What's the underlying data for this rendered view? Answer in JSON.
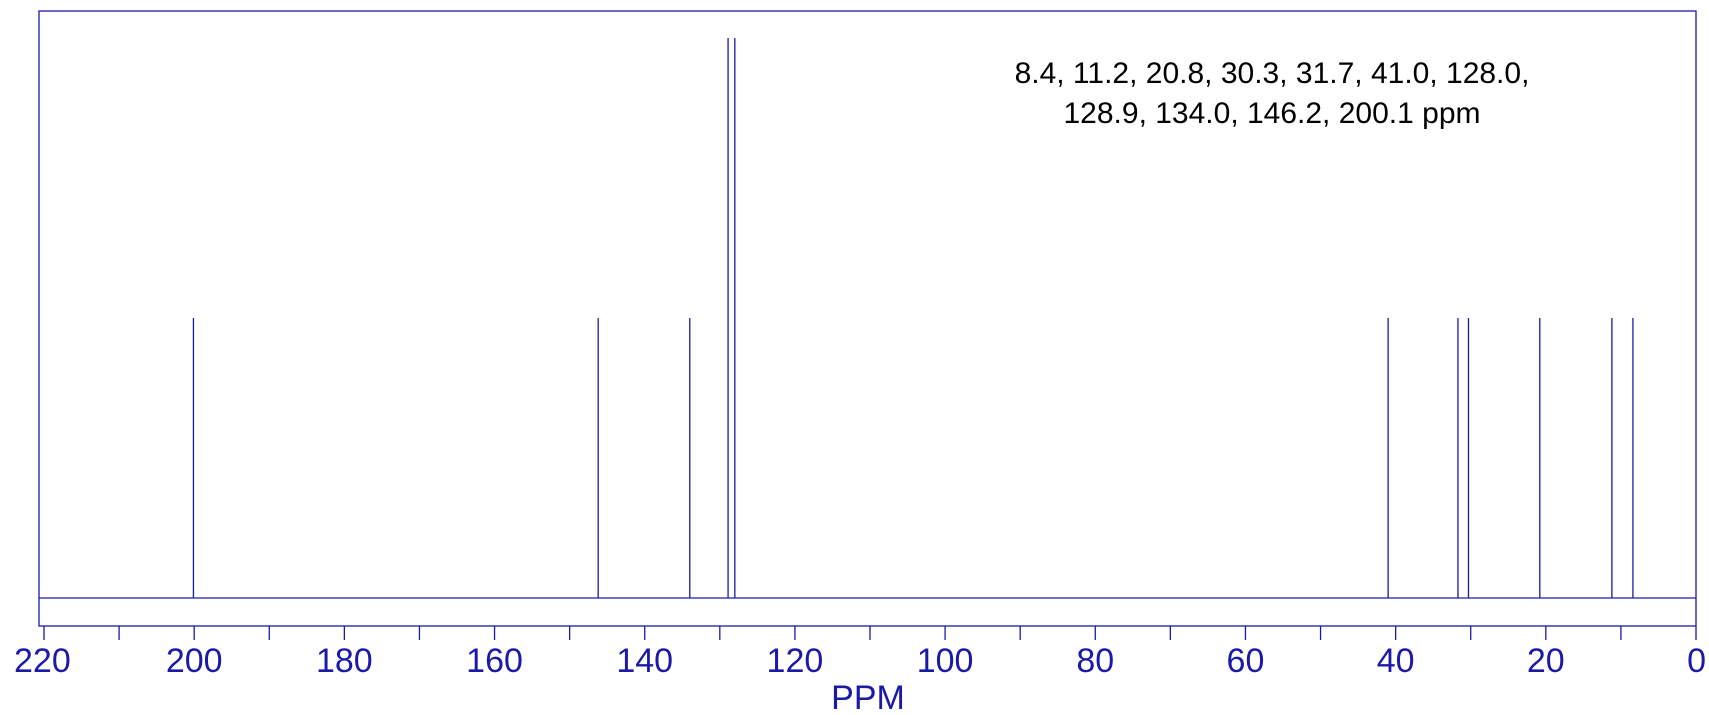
{
  "chart_data": {
    "type": "line",
    "title": "",
    "xlabel": "PPM",
    "ylabel": "",
    "xlim": [
      220,
      0
    ],
    "x_reversed": true,
    "grid": false,
    "legend": "none",
    "annotation_lines": [
      "8.4, 11.2, 20.8, 30.3, 31.7, 41.0, 128.0,",
      "128.9, 134.0, 146.2, 200.1 ppm"
    ],
    "x_ticks": [
      220,
      200,
      180,
      160,
      140,
      120,
      100,
      80,
      60,
      40,
      20,
      0
    ],
    "x_tick_labels": [
      "220",
      "200",
      "180",
      "160",
      "140",
      "120",
      "100",
      "80",
      "60",
      "40",
      "20",
      "0"
    ],
    "minor_ticks": [
      210,
      190,
      170,
      150,
      130,
      110,
      90,
      70,
      50,
      30,
      10
    ],
    "peaks": [
      {
        "ppm": 200.1,
        "intensity": 0.5
      },
      {
        "ppm": 146.2,
        "intensity": 0.5
      },
      {
        "ppm": 134.0,
        "intensity": 0.5
      },
      {
        "ppm": 128.9,
        "intensity": 1.0
      },
      {
        "ppm": 128.0,
        "intensity": 1.0
      },
      {
        "ppm": 41.0,
        "intensity": 0.5
      },
      {
        "ppm": 31.7,
        "intensity": 0.5
      },
      {
        "ppm": 30.3,
        "intensity": 0.5
      },
      {
        "ppm": 20.8,
        "intensity": 0.5
      },
      {
        "ppm": 11.2,
        "intensity": 0.5
      },
      {
        "ppm": 8.4,
        "intensity": 0.5
      }
    ],
    "colors": {
      "axis": "#1a1aa6",
      "text": "#1a1aa6",
      "annotation": "#000000"
    }
  }
}
